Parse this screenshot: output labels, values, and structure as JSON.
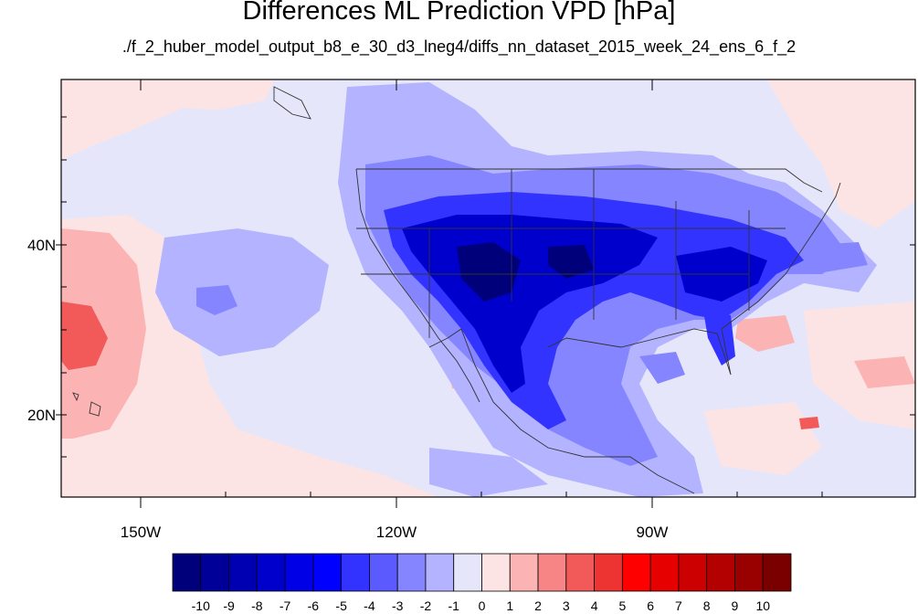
{
  "title": "Differences ML Prediction VPD [hPa]",
  "subtitle": "./f_2_huber_model_output_b8_e_30_d3_lneg4/diffs_nn_dataset_2015_week_24_ens_6_f_2",
  "axes": {
    "lat_labels": [
      "40N",
      "20N"
    ],
    "lon_labels": [
      "150W",
      "120W",
      "90W"
    ],
    "lat_range": [
      10,
      59
    ],
    "lon_range": [
      -159,
      -60
    ]
  },
  "colorbar": {
    "labels": [
      "-10",
      "-9",
      "-8",
      "-7",
      "-6",
      "-5",
      "-4",
      "-3",
      "-2",
      "-1",
      "0",
      "1",
      "2",
      "3",
      "4",
      "5",
      "6",
      "7",
      "8",
      "9",
      "10"
    ],
    "colors": [
      "#00007a",
      "#000099",
      "#0000b3",
      "#0000cc",
      "#0000e6",
      "#0000ff",
      "#3333ff",
      "#5a5aff",
      "#8585ff",
      "#b3b3ff",
      "#e6e6fa",
      "#fde4e4",
      "#fbb3b3",
      "#f78585",
      "#f25a5a",
      "#ee3333",
      "#ff0000",
      "#e60000",
      "#cc0000",
      "#b30000",
      "#990000",
      "#7a0000"
    ]
  }
}
